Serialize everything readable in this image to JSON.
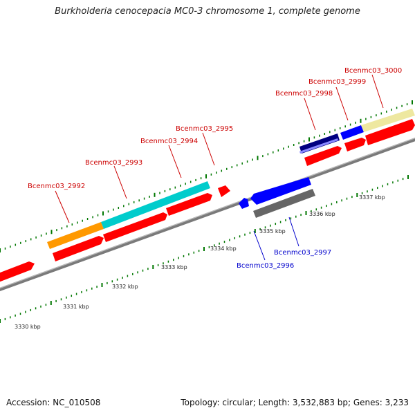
{
  "title": "Burkholderia cenocepacia MC0-3 chromosome 1, complete genome",
  "footer": {
    "accession": "Accession: NC_010508",
    "stats": "Topology: circular; Length: 3,532,883 bp; Genes: 3,233"
  },
  "colors": {
    "red": "#ff0000",
    "orange": "#ff9900",
    "cyan": "#00cccc",
    "blue": "#0000ff",
    "navy": "#000080",
    "grey": "#666666",
    "khaki": "#eee8a0",
    "backbone": "#888888",
    "tick": "#007700",
    "label_red": "#cc0000",
    "label_blue": "#0000cc"
  },
  "gene_labels": [
    {
      "id": "2992",
      "text": "Bcenmc03_2992",
      "color": "red"
    },
    {
      "id": "2993",
      "text": "Bcenmc03_2993",
      "color": "red"
    },
    {
      "id": "2994",
      "text": "Bcenmc03_2994",
      "color": "red"
    },
    {
      "id": "2995",
      "text": "Bcenmc03_2995",
      "color": "red"
    },
    {
      "id": "2996",
      "text": "Bcenmc03_2996",
      "color": "blue"
    },
    {
      "id": "2997",
      "text": "Bcenmc03_2997",
      "color": "blue"
    },
    {
      "id": "2998",
      "text": "Bcenmc03_2998",
      "color": "red"
    },
    {
      "id": "2999",
      "text": "Bcenmc03_2999",
      "color": "red"
    },
    {
      "id": "3000",
      "text": "Bcenmc03_3000",
      "color": "red"
    }
  ],
  "kbp_labels": [
    "3330 kbp",
    "3331 kbp",
    "3332 kbp",
    "3333 kbp",
    "3334 kbp",
    "3335 kbp",
    "3336 kbp",
    "3337 kbp"
  ]
}
